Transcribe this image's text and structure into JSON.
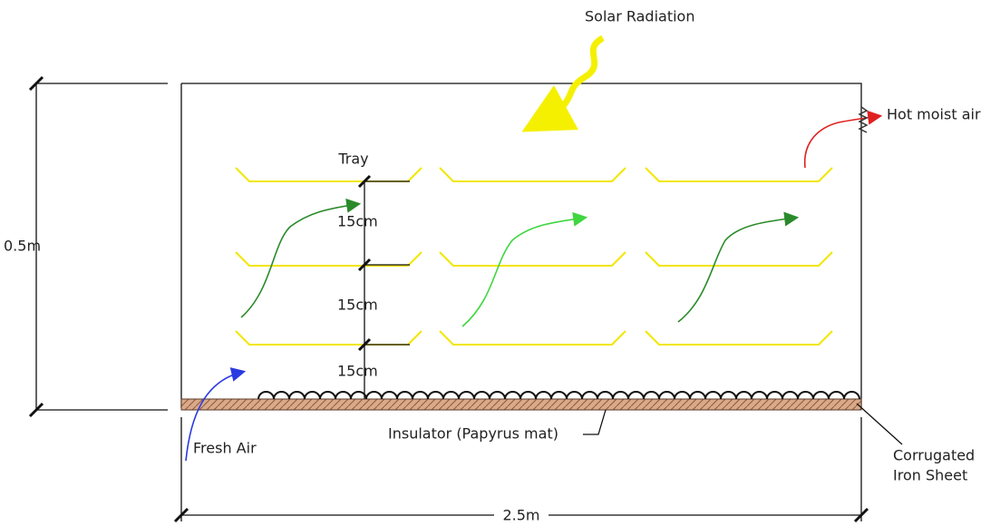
{
  "labels": {
    "solar": "Solar Radiation",
    "hot_air": "Hot moist air",
    "tray": "Tray",
    "spacings": [
      "15cm",
      "15cm",
      "15cm"
    ],
    "height": "0.5m",
    "fresh_air": "Fresh Air",
    "insulator": "Insulator (Papyrus mat)",
    "corrugated": [
      "Corrugated",
      "Iron Sheet"
    ],
    "width": "2.5m"
  }
}
